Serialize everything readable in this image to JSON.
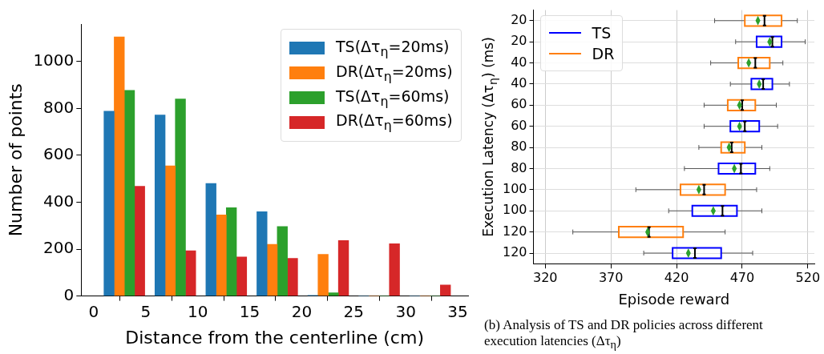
{
  "chart_data": [
    {
      "type": "histogram",
      "xlabel": "Distance from the centerline (cm)",
      "ylabel": "Number of points",
      "bins": [
        0.5,
        5.4,
        10.3,
        15.2,
        20.1,
        25,
        29.9,
        34.8
      ],
      "series": [
        {
          "name": "TS(Δτ$_{η}$=20ms)",
          "color": "#1f77b4",
          "values": [
            788,
            772,
            480,
            360,
            3,
            0,
            0
          ]
        },
        {
          "name": "DR(Δτ$_{η}$=20ms)",
          "color": "#ff7f0e",
          "values": [
            1105,
            555,
            346,
            220,
            178,
            0,
            0
          ]
        },
        {
          "name": "TS(Δτ$_{η}$=60ms)",
          "color": "#2ca02c",
          "values": [
            877,
            840,
            377,
            296,
            14,
            0,
            0
          ]
        },
        {
          "name": "DR(Δτ$_{η}$=60ms)",
          "color": "#d62728",
          "values": [
            468,
            193,
            167,
            161,
            237,
            223,
            47
          ]
        }
      ],
      "xlim": [
        -1.2,
        36
      ],
      "xticks": [
        0,
        5,
        10,
        15,
        20,
        25,
        30,
        35
      ],
      "ylim": [
        0,
        1160
      ],
      "yticks": [
        0,
        200,
        400,
        600,
        800,
        1000
      ],
      "grid": false,
      "legend": "top right"
    },
    {
      "type": "box",
      "orientation": "horizontal",
      "xlabel": "Episode reward",
      "ylabel": "Execution Latency (Δτ$_{η}$) (ms)",
      "categories": [
        "20",
        "20",
        "40",
        "40",
        "60",
        "60",
        "80",
        "80",
        "100",
        "100",
        "120",
        "120"
      ],
      "series": [
        {
          "name": "TS",
          "color": "#0000ff",
          "boxes": [
            null,
            {
              "low": 465,
              "q1": 481,
              "median": 493,
              "q3": 500,
              "high": 518,
              "mean": 491
            },
            null,
            {
              "low": 461,
              "q1": 477,
              "median": 486,
              "q3": 493,
              "high": 506,
              "mean": 483
            },
            null,
            {
              "low": 441,
              "q1": 461,
              "median": 472,
              "q3": 483,
              "high": 497,
              "mean": 468
            },
            null,
            {
              "low": 426,
              "q1": 452,
              "median": 469,
              "q3": 480,
              "high": 491,
              "mean": 464
            },
            null,
            {
              "low": 414,
              "q1": 432,
              "median": 455,
              "q3": 466,
              "high": 485,
              "mean": 448
            },
            null,
            {
              "low": 395,
              "q1": 417,
              "median": 434,
              "q3": 454,
              "high": 478,
              "mean": 429
            }
          ]
        },
        {
          "name": "DR",
          "color": "#ff7f0e",
          "boxes": [
            {
              "low": 449,
              "q1": 472,
              "median": 487,
              "q3": 500,
              "high": 512,
              "mean": 482
            },
            null,
            {
              "low": 446,
              "q1": 467,
              "median": 480,
              "q3": 491,
              "high": 501,
              "mean": 475
            },
            null,
            {
              "low": 441,
              "q1": 459,
              "median": 470,
              "q3": 480,
              "high": 496,
              "mean": 468
            },
            null,
            {
              "low": 437,
              "q1": 454,
              "median": 462,
              "q3": 472,
              "high": 485,
              "mean": 460
            },
            null,
            {
              "low": 389,
              "q1": 423,
              "median": 441,
              "q3": 457,
              "high": 481,
              "mean": 437
            },
            null,
            {
              "low": 341,
              "q1": 376,
              "median": 399,
              "q3": 425,
              "high": 457,
              "mean": 398
            },
            null
          ]
        }
      ],
      "xlim": [
        311,
        525
      ],
      "xticks": [
        320,
        370,
        420,
        470,
        520
      ],
      "grid": true,
      "legend": "top left",
      "annotations": [
        "(b) Analysis of TS and DR policies across different execution latencies (Δτ$_{η}$)"
      ]
    }
  ]
}
